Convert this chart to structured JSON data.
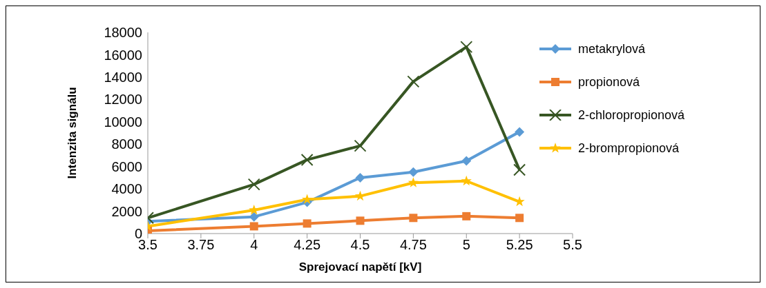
{
  "chart_data": {
    "type": "line",
    "xlabel": "Sprejovací napětí [kV]",
    "ylabel": "Intenzita signálu",
    "x": [
      3.5,
      4,
      4.25,
      4.5,
      4.75,
      5,
      5.25
    ],
    "xlim": [
      3.5,
      5.5
    ],
    "xticks": [
      3.5,
      3.75,
      4,
      4.25,
      4.5,
      4.75,
      5,
      5.25,
      5.5
    ],
    "ylim": [
      0,
      18000
    ],
    "yticks": [
      0,
      2000,
      4000,
      6000,
      8000,
      10000,
      12000,
      14000,
      16000,
      18000
    ],
    "grid": false,
    "legend": "right",
    "series": [
      {
        "name": "metakrylová",
        "color": "#5b9bd5",
        "marker": "diamond",
        "values": [
          1100,
          1500,
          2800,
          5000,
          5500,
          6500,
          9100
        ]
      },
      {
        "name": "propionová",
        "color": "#ed7d31",
        "marker": "square",
        "values": [
          250,
          650,
          900,
          1150,
          1400,
          1550,
          1400
        ]
      },
      {
        "name": "2-chloropropionová",
        "color": "#375623",
        "marker": "cross",
        "values": [
          1400,
          4400,
          6600,
          7850,
          13600,
          16700,
          5700
        ]
      },
      {
        "name": "2-brompropionová",
        "color": "#ffc000",
        "marker": "star",
        "values": [
          650,
          2100,
          3050,
          3350,
          4550,
          4700,
          2850
        ]
      }
    ]
  }
}
